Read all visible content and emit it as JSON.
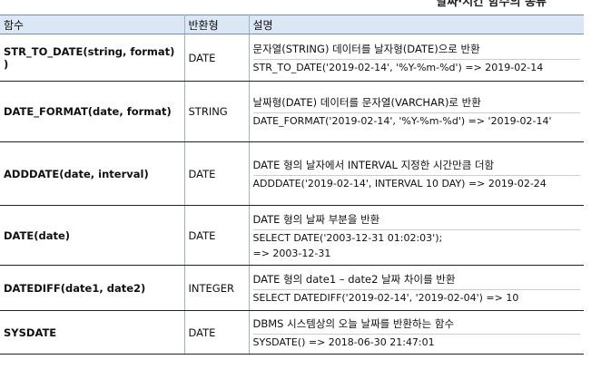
{
  "page": {
    "title": "날짜·시간 함수의 종류"
  },
  "table": {
    "headers": [
      "함수",
      "반환형",
      "설명"
    ],
    "rows": [
      {
        "name": "STR_TO_DATE(string, format) )",
        "type": "DATE",
        "desc": "문자열(STRING) 데이터를 날자형(DATE)으로 반환",
        "example": [
          "STR_TO_DATE('2019-02-14', '%Y-%m-%d') => 2019-02-14"
        ]
      },
      {
        "name": "DATE_FORMAT(date, format)",
        "type": "STRING",
        "desc": "날짜형(DATE) 데이터를 문자열(VARCHAR)로 반환",
        "example": [
          "DATE_FORMAT('2019-02-14', '%Y-%m-%d') => '2019-02-14'"
        ]
      },
      {
        "name": "ADDDATE(date, interval)",
        "type": "DATE",
        "desc": "DATE 형의 날자에서 INTERVAL 지정한 시간만큼 더함",
        "example": [
          "ADDDATE('2019-02-14', INTERVAL 10 DAY) => 2019-02-24"
        ]
      },
      {
        "name": "DATE(date)",
        "type": "DATE",
        "desc": "DATE 형의 날짜 부분을 반환",
        "example": [
          "SELECT DATE('2003-12-31 01:02:03');",
          "=> 2003-12-31"
        ]
      },
      {
        "name": "DATEDIFF(date1, date2)",
        "type": "INTEGER",
        "desc": "DATE 형의 date1 – date2 날짜 차이를 반환",
        "example": [
          "SELECT DATEDIFF('2019-02-14', '2019-02-04') => 10"
        ]
      },
      {
        "name": "SYSDATE",
        "type": "DATE",
        "desc": "DBMS 시스템상의 오늘 날짜를 반환하는 함수",
        "example": [
          "SYSDATE() => 2018-06-30 21:47:01"
        ]
      }
    ]
  }
}
